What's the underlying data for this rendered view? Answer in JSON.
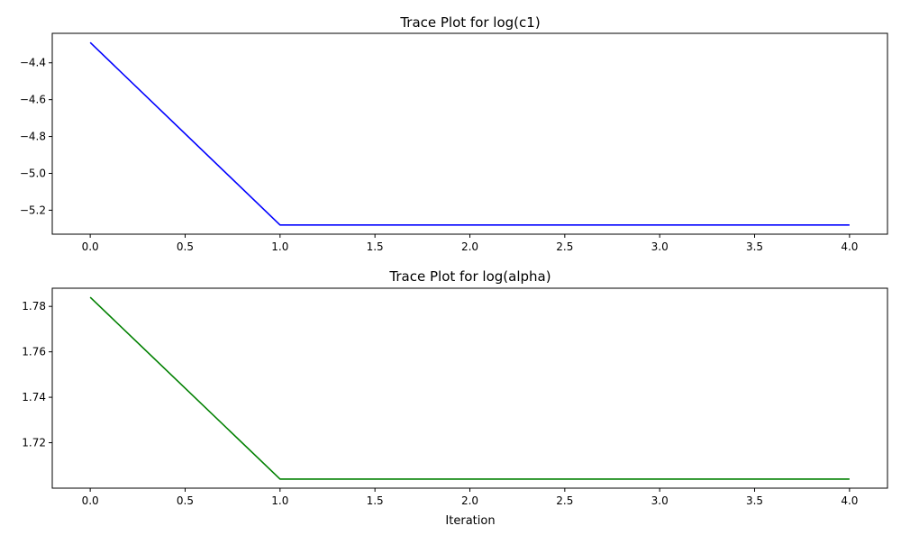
{
  "figure": {
    "background": "#ffffff"
  },
  "chart_data": [
    {
      "type": "line",
      "title": "Trace Plot for log(c1)",
      "xlabel": "",
      "ylabel": "",
      "x": [
        0,
        1,
        2,
        3,
        4
      ],
      "series": [
        {
          "values": [
            -4.29,
            -5.28,
            -5.28,
            -5.28,
            -5.28
          ],
          "color": "#0000ff"
        }
      ],
      "xlim": [
        -0.2,
        4.2
      ],
      "ylim": [
        -5.33,
        -4.24
      ],
      "xticks": [
        0.0,
        0.5,
        1.0,
        1.5,
        2.0,
        2.5,
        3.0,
        3.5,
        4.0
      ],
      "xtick_labels": [
        "0.0",
        "0.5",
        "1.0",
        "1.5",
        "2.0",
        "2.5",
        "3.0",
        "3.5",
        "4.0"
      ],
      "yticks": [
        -4.4,
        -4.6,
        -4.8,
        -5.0,
        -5.2
      ],
      "ytick_labels": [
        "−4.4",
        "−4.6",
        "−4.8",
        "−5.0",
        "−5.2"
      ],
      "grid": false,
      "legend": "none"
    },
    {
      "type": "line",
      "title": "Trace Plot for log(alpha)",
      "xlabel": "Iteration",
      "ylabel": "",
      "x": [
        0,
        1,
        2,
        3,
        4
      ],
      "series": [
        {
          "values": [
            1.784,
            1.704,
            1.704,
            1.704,
            1.704
          ],
          "color": "#008000"
        }
      ],
      "xlim": [
        -0.2,
        4.2
      ],
      "ylim": [
        1.7,
        1.788
      ],
      "xticks": [
        0.0,
        0.5,
        1.0,
        1.5,
        2.0,
        2.5,
        3.0,
        3.5,
        4.0
      ],
      "xtick_labels": [
        "0.0",
        "0.5",
        "1.0",
        "1.5",
        "2.0",
        "2.5",
        "3.0",
        "3.5",
        "4.0"
      ],
      "yticks": [
        1.78,
        1.76,
        1.74,
        1.72
      ],
      "ytick_labels": [
        "1.78",
        "1.76",
        "1.74",
        "1.72"
      ],
      "grid": false,
      "legend": "none"
    }
  ]
}
